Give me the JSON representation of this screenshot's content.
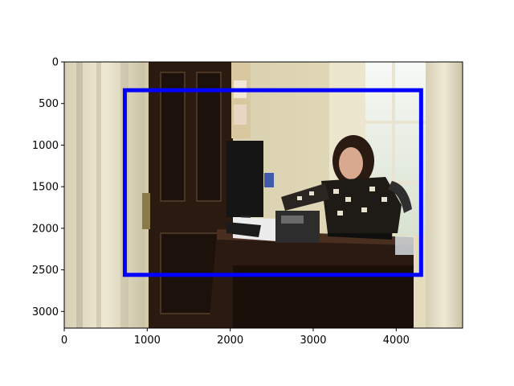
{
  "figure": {
    "image_description_icon": "photo-office-desk-icon",
    "x_range": [
      0,
      4800
    ],
    "y_range": [
      3200,
      0
    ],
    "x_ticks": [
      0,
      1000,
      2000,
      3000,
      4000
    ],
    "y_ticks": [
      0,
      500,
      1000,
      1500,
      2000,
      2500,
      3000
    ],
    "x_tick_labels": [
      "0",
      "1000",
      "2000",
      "3000",
      "4000"
    ],
    "y_tick_labels": [
      "0",
      "500",
      "1000",
      "1500",
      "2000",
      "2500",
      "3000"
    ]
  },
  "annotation": {
    "type": "bounding-box",
    "color": "#0000ff",
    "x0": 730,
    "y0": 340,
    "x1": 4300,
    "y1": 2560
  }
}
